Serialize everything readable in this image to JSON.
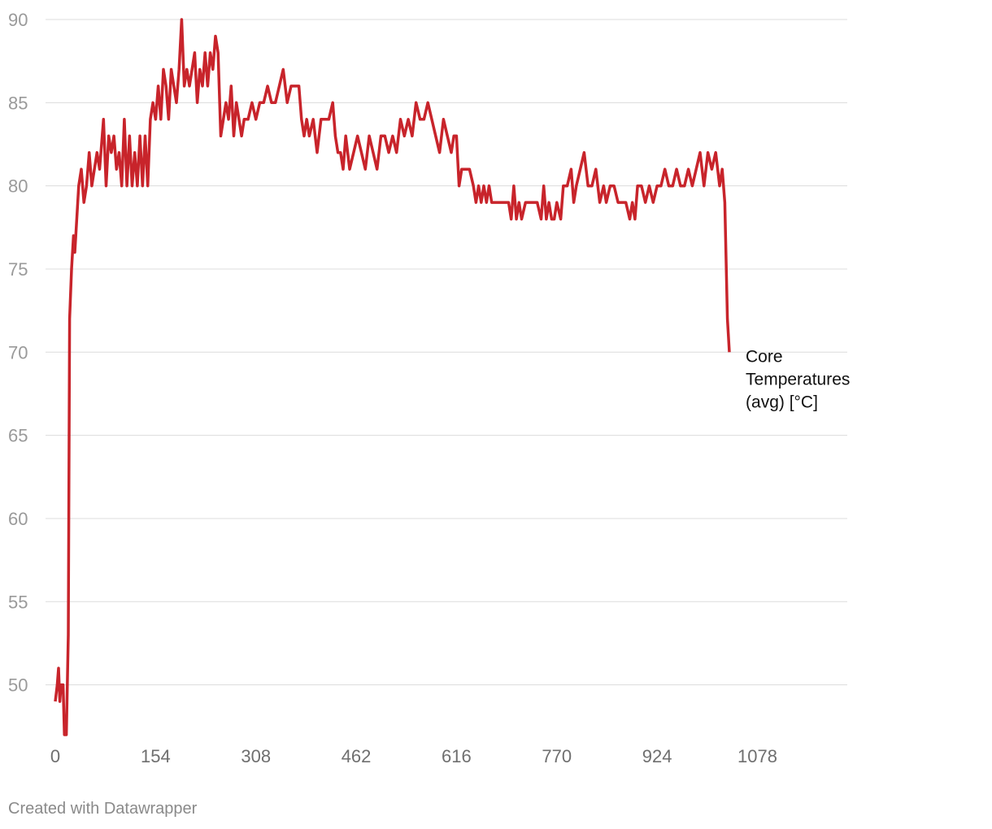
{
  "chart_data": {
    "type": "line",
    "x_ticks": [
      0,
      154,
      308,
      462,
      616,
      770,
      924,
      1078
    ],
    "y_ticks": [
      50,
      55,
      60,
      65,
      70,
      75,
      80,
      85,
      90
    ],
    "xlim": [
      0,
      1220
    ],
    "ylim": [
      47,
      90
    ],
    "grid": true,
    "series": [
      {
        "name": "Core Temperatures (avg) [°C]",
        "color": "#c8242b",
        "points": [
          [
            0,
            49
          ],
          [
            3,
            50
          ],
          [
            5,
            51
          ],
          [
            7,
            49
          ],
          [
            9,
            50
          ],
          [
            12,
            50
          ],
          [
            14,
            47
          ],
          [
            17,
            47
          ],
          [
            20,
            53
          ],
          [
            22,
            72
          ],
          [
            25,
            75
          ],
          [
            28,
            77
          ],
          [
            30,
            76
          ],
          [
            33,
            78
          ],
          [
            36,
            80
          ],
          [
            40,
            81
          ],
          [
            44,
            79
          ],
          [
            48,
            80
          ],
          [
            52,
            82
          ],
          [
            56,
            80
          ],
          [
            60,
            81
          ],
          [
            64,
            82
          ],
          [
            68,
            81
          ],
          [
            72,
            83
          ],
          [
            74,
            84
          ],
          [
            78,
            80
          ],
          [
            82,
            83
          ],
          [
            86,
            82
          ],
          [
            90,
            83
          ],
          [
            94,
            81
          ],
          [
            98,
            82
          ],
          [
            102,
            80
          ],
          [
            106,
            84
          ],
          [
            110,
            80
          ],
          [
            114,
            83
          ],
          [
            118,
            80
          ],
          [
            122,
            82
          ],
          [
            126,
            80
          ],
          [
            130,
            83
          ],
          [
            134,
            80
          ],
          [
            138,
            83
          ],
          [
            142,
            80
          ],
          [
            146,
            84
          ],
          [
            150,
            85
          ],
          [
            154,
            84
          ],
          [
            158,
            86
          ],
          [
            162,
            84
          ],
          [
            166,
            87
          ],
          [
            170,
            86
          ],
          [
            174,
            84
          ],
          [
            178,
            87
          ],
          [
            182,
            86
          ],
          [
            186,
            85
          ],
          [
            190,
            87
          ],
          [
            194,
            90
          ],
          [
            198,
            86
          ],
          [
            202,
            87
          ],
          [
            206,
            86
          ],
          [
            210,
            87
          ],
          [
            214,
            88
          ],
          [
            218,
            85
          ],
          [
            222,
            87
          ],
          [
            226,
            86
          ],
          [
            230,
            88
          ],
          [
            234,
            86
          ],
          [
            238,
            88
          ],
          [
            242,
            87
          ],
          [
            246,
            89
          ],
          [
            250,
            88
          ],
          [
            254,
            83
          ],
          [
            258,
            84
          ],
          [
            262,
            85
          ],
          [
            266,
            84
          ],
          [
            270,
            86
          ],
          [
            274,
            83
          ],
          [
            278,
            85
          ],
          [
            282,
            84
          ],
          [
            286,
            83
          ],
          [
            290,
            84
          ],
          [
            296,
            84
          ],
          [
            302,
            85
          ],
          [
            308,
            84
          ],
          [
            314,
            85
          ],
          [
            320,
            85
          ],
          [
            326,
            86
          ],
          [
            332,
            85
          ],
          [
            338,
            85
          ],
          [
            344,
            86
          ],
          [
            350,
            87
          ],
          [
            356,
            85
          ],
          [
            362,
            86
          ],
          [
            368,
            86
          ],
          [
            374,
            86
          ],
          [
            378,
            84
          ],
          [
            382,
            83
          ],
          [
            386,
            84
          ],
          [
            390,
            83
          ],
          [
            396,
            84
          ],
          [
            402,
            82
          ],
          [
            408,
            84
          ],
          [
            414,
            84
          ],
          [
            420,
            84
          ],
          [
            426,
            85
          ],
          [
            430,
            83
          ],
          [
            434,
            82
          ],
          [
            438,
            82
          ],
          [
            442,
            81
          ],
          [
            446,
            83
          ],
          [
            452,
            81
          ],
          [
            458,
            82
          ],
          [
            464,
            83
          ],
          [
            470,
            82
          ],
          [
            476,
            81
          ],
          [
            482,
            83
          ],
          [
            488,
            82
          ],
          [
            494,
            81
          ],
          [
            500,
            83
          ],
          [
            506,
            83
          ],
          [
            512,
            82
          ],
          [
            518,
            83
          ],
          [
            524,
            82
          ],
          [
            530,
            84
          ],
          [
            536,
            83
          ],
          [
            542,
            84
          ],
          [
            548,
            83
          ],
          [
            554,
            85
          ],
          [
            560,
            84
          ],
          [
            566,
            84
          ],
          [
            572,
            85
          ],
          [
            578,
            84
          ],
          [
            584,
            83
          ],
          [
            590,
            82
          ],
          [
            596,
            84
          ],
          [
            602,
            83
          ],
          [
            608,
            82
          ],
          [
            612,
            83
          ],
          [
            616,
            83
          ],
          [
            620,
            80
          ],
          [
            624,
            81
          ],
          [
            630,
            81
          ],
          [
            636,
            81
          ],
          [
            642,
            80
          ],
          [
            646,
            79
          ],
          [
            650,
            80
          ],
          [
            654,
            79
          ],
          [
            658,
            80
          ],
          [
            662,
            79
          ],
          [
            666,
            80
          ],
          [
            670,
            79
          ],
          [
            676,
            79
          ],
          [
            682,
            79
          ],
          [
            690,
            79
          ],
          [
            696,
            79
          ],
          [
            700,
            78
          ],
          [
            704,
            80
          ],
          [
            708,
            78
          ],
          [
            712,
            79
          ],
          [
            716,
            78
          ],
          [
            722,
            79
          ],
          [
            728,
            79
          ],
          [
            734,
            79
          ],
          [
            740,
            79
          ],
          [
            746,
            78
          ],
          [
            750,
            80
          ],
          [
            754,
            78
          ],
          [
            758,
            79
          ],
          [
            762,
            78
          ],
          [
            766,
            78
          ],
          [
            770,
            79
          ],
          [
            776,
            78
          ],
          [
            780,
            80
          ],
          [
            786,
            80
          ],
          [
            792,
            81
          ],
          [
            796,
            79
          ],
          [
            800,
            80
          ],
          [
            806,
            81
          ],
          [
            812,
            82
          ],
          [
            818,
            80
          ],
          [
            824,
            80
          ],
          [
            830,
            81
          ],
          [
            836,
            79
          ],
          [
            842,
            80
          ],
          [
            846,
            79
          ],
          [
            852,
            80
          ],
          [
            858,
            80
          ],
          [
            864,
            79
          ],
          [
            870,
            79
          ],
          [
            876,
            79
          ],
          [
            882,
            78
          ],
          [
            886,
            79
          ],
          [
            890,
            78
          ],
          [
            894,
            80
          ],
          [
            900,
            80
          ],
          [
            906,
            79
          ],
          [
            912,
            80
          ],
          [
            918,
            79
          ],
          [
            924,
            80
          ],
          [
            930,
            80
          ],
          [
            936,
            81
          ],
          [
            942,
            80
          ],
          [
            948,
            80
          ],
          [
            954,
            81
          ],
          [
            960,
            80
          ],
          [
            966,
            80
          ],
          [
            972,
            81
          ],
          [
            978,
            80
          ],
          [
            984,
            81
          ],
          [
            990,
            82
          ],
          [
            996,
            80
          ],
          [
            1002,
            82
          ],
          [
            1008,
            81
          ],
          [
            1014,
            82
          ],
          [
            1020,
            80
          ],
          [
            1024,
            81
          ],
          [
            1028,
            79
          ],
          [
            1032,
            72
          ],
          [
            1035,
            70
          ]
        ]
      }
    ],
    "series_label": [
      "Core",
      "Temperatures",
      "(avg) [°C]"
    ]
  },
  "footer": {
    "credit": "Created with Datawrapper"
  }
}
